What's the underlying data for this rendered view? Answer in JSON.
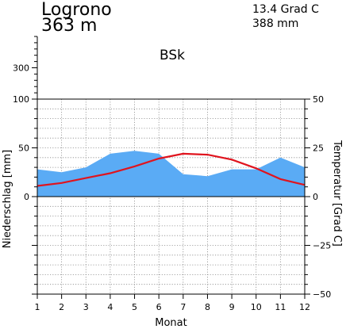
{
  "header": {
    "station": "Logrono",
    "elevation": "363 m",
    "mean_temperature": "13.4 Grad C",
    "annual_precipitation": "388 mm",
    "climate_class": "BSk"
  },
  "chart_data": {
    "type": "area",
    "xlabel": "Monat",
    "ylabel_left": "Niederschlag [mm]",
    "ylabel_right": "Temperatur [Grad C]",
    "x": [
      1,
      2,
      3,
      4,
      5,
      6,
      7,
      8,
      9,
      10,
      11,
      12
    ],
    "x_ticks": [
      "1",
      "2",
      "3",
      "4",
      "5",
      "6",
      "7",
      "8",
      "9",
      "10",
      "11",
      "12"
    ],
    "left_ticks": [
      "300",
      "100",
      "50",
      "0"
    ],
    "right_ticks": [
      "50",
      "25",
      "0",
      "-25",
      "-50"
    ],
    "precip_ylim": [
      -100,
      100
    ],
    "temp_ylim": [
      -50,
      50
    ],
    "series": [
      {
        "name": "Niederschlag",
        "unit": "mm",
        "color": "#5aabf5",
        "values": [
          28,
          25,
          30,
          44,
          47,
          44,
          23,
          21,
          28,
          28,
          40,
          30
        ]
      },
      {
        "name": "Temperatur",
        "unit": "Grad C",
        "color": "#e0141e",
        "values": [
          5.5,
          7,
          9.5,
          12,
          15.5,
          19.5,
          22,
          21.5,
          19,
          14.5,
          9,
          6
        ]
      }
    ],
    "grid": true
  }
}
